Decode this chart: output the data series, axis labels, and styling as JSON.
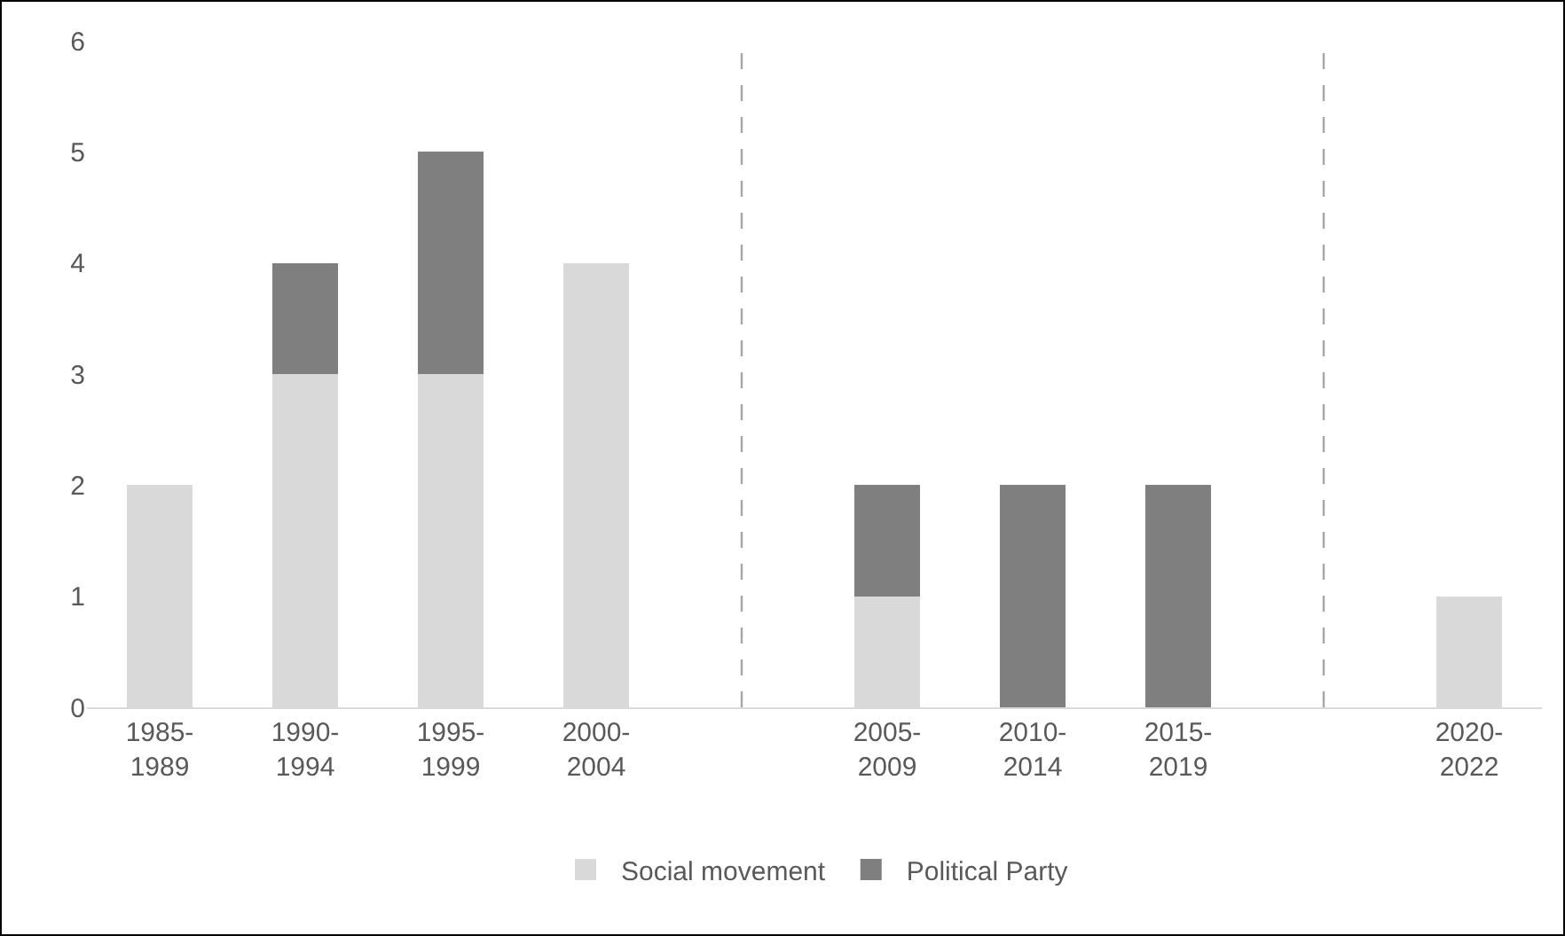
{
  "chart_data": {
    "type": "bar",
    "stacked": true,
    "categories": [
      "1985-1989",
      "1990-1994",
      "1995-1999",
      "2000-2004",
      null,
      "2005-2009",
      "2010-2014",
      "2015-2019",
      null,
      "2020-2022"
    ],
    "series": [
      {
        "name": "Social movement",
        "color": "#d9d9d9",
        "values": [
          2,
          3,
          3,
          4,
          null,
          1,
          null,
          null,
          null,
          1
        ]
      },
      {
        "name": "Political Party",
        "color": "#7f7f7f",
        "values": [
          null,
          1,
          2,
          null,
          null,
          1,
          2,
          2,
          null,
          null
        ]
      }
    ],
    "ylim": [
      0,
      6
    ],
    "yticks": [
      0,
      1,
      2,
      3,
      4,
      5,
      6
    ],
    "legend": "bottom"
  }
}
